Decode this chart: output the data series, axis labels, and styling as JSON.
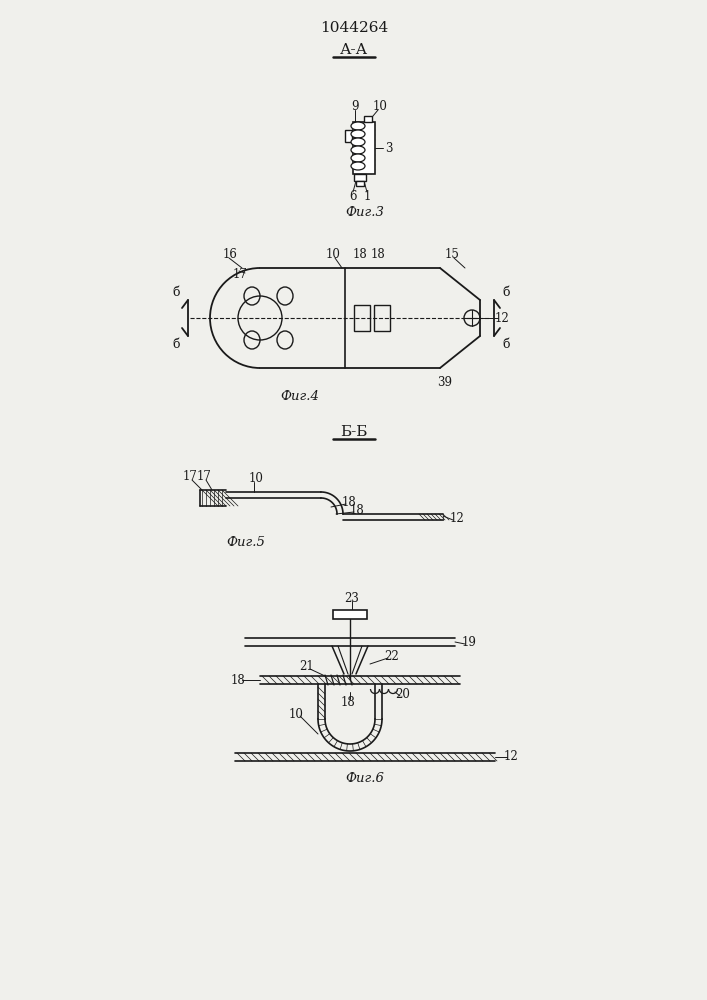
{
  "patent_number": "1044264",
  "fig3_label": "А-А",
  "fig3_caption": "Фиг.3",
  "fig4_caption": "Фиг.4",
  "fig5_label": "Б-Б",
  "fig5_caption": "Фиг.5",
  "fig6_caption": "Фиг.6",
  "bg_color": "#f0f0ec",
  "line_color": "#1a1a1a"
}
